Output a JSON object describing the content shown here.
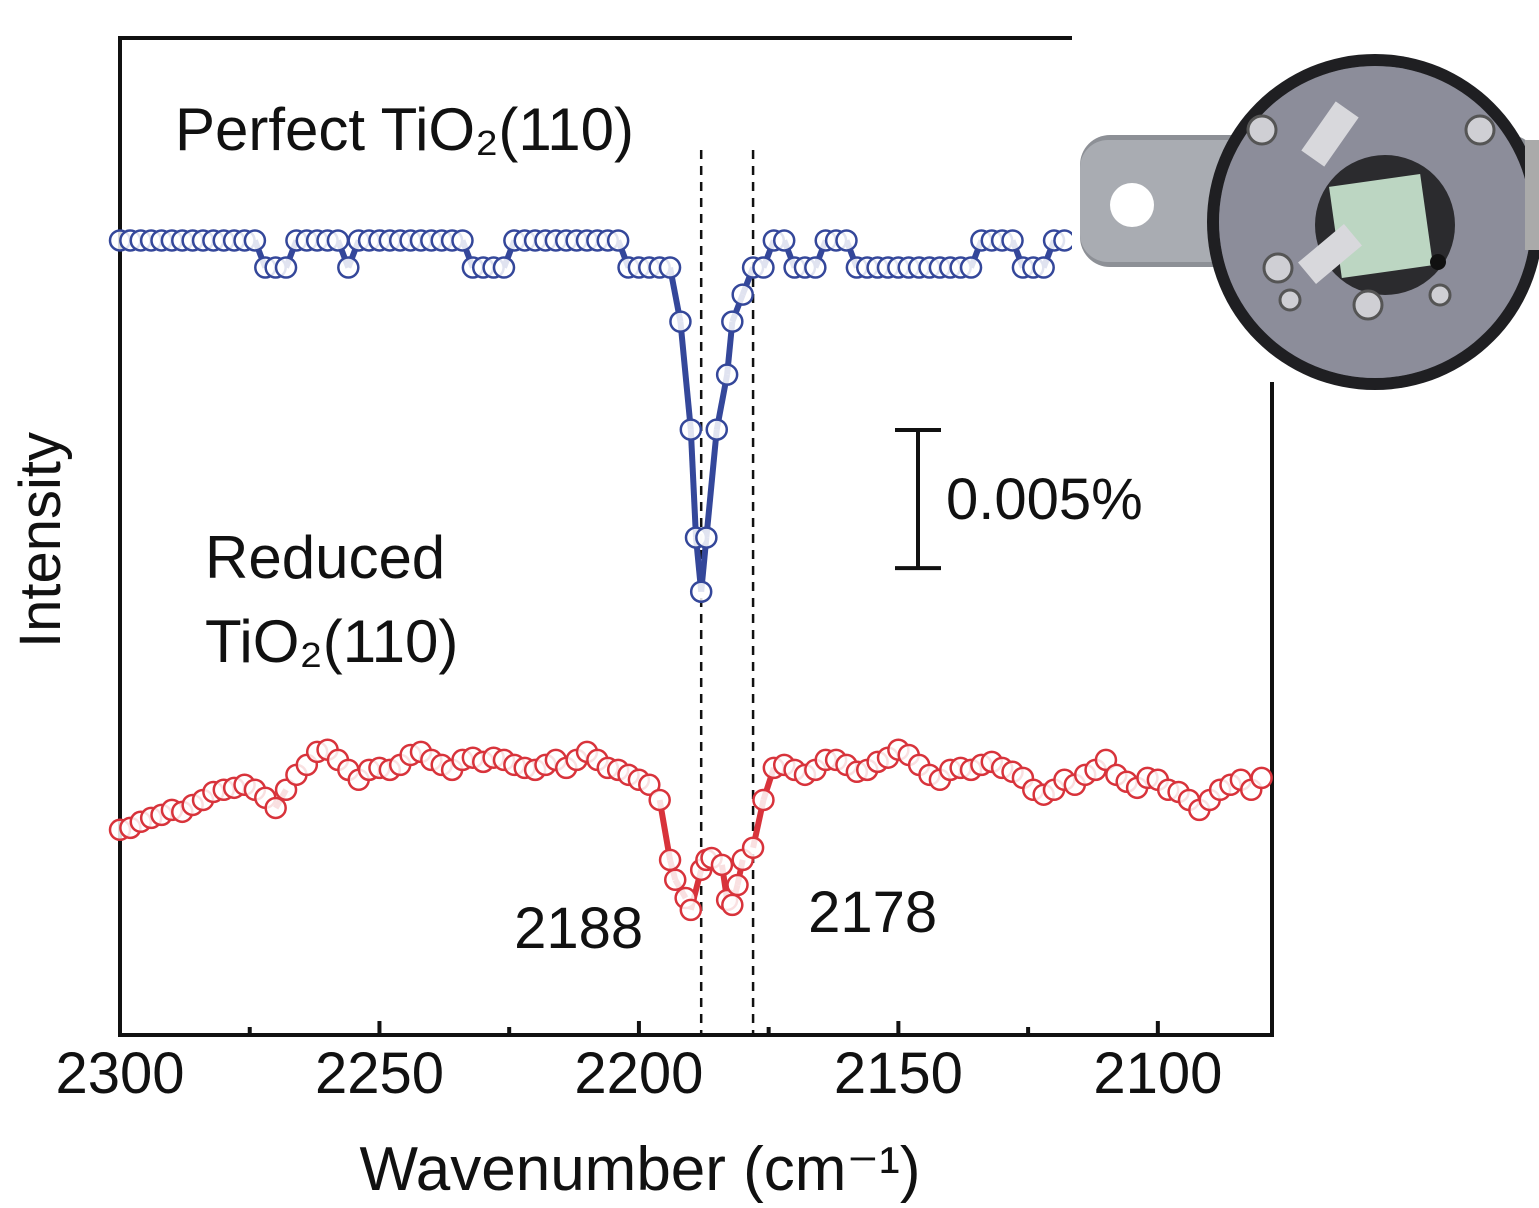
{
  "chart_data": {
    "type": "scatter",
    "y_label": "Intensity",
    "x_label": "Wavenumber (cm⁻¹)",
    "xlim": [
      2300,
      2078
    ],
    "ylim": [
      0,
      0.0361
    ],
    "xticks": [
      2300,
      2250,
      2200,
      2150,
      2100
    ],
    "xminor_ticks": [
      2275,
      2225,
      2175,
      2125
    ],
    "scale_bar": {
      "value": 0.005,
      "label": "0.005%"
    },
    "annotations": [
      {
        "text": "2188",
        "x": 2188
      },
      {
        "text": "2178",
        "x": 2178
      }
    ],
    "series": [
      {
        "name": "Perfect TiO₂(110)",
        "color": "#34479a",
        "x": [
          2300,
          2298,
          2296,
          2294,
          2292,
          2290,
          2288,
          2286,
          2284,
          2282,
          2280,
          2278,
          2276,
          2274,
          2272,
          2270,
          2268,
          2266,
          2264,
          2262,
          2260,
          2258,
          2256,
          2254,
          2252,
          2250,
          2248,
          2246,
          2244,
          2242,
          2240,
          2238,
          2236,
          2234,
          2232,
          2230,
          2228,
          2226,
          2224,
          2222,
          2220,
          2218,
          2216,
          2214,
          2212,
          2210,
          2208,
          2206,
          2204,
          2202,
          2200,
          2198,
          2196,
          2194,
          2192,
          2190,
          2189,
          2188,
          2187,
          2185,
          2183,
          2182,
          2180,
          2178,
          2176,
          2174,
          2172,
          2170,
          2168,
          2166,
          2164,
          2162,
          2160,
          2158,
          2156,
          2154,
          2152,
          2150,
          2148,
          2146,
          2144,
          2142,
          2140,
          2138,
          2136,
          2134,
          2132,
          2130,
          2128,
          2126,
          2124,
          2122,
          2120,
          2118
        ],
        "values": [
          0.02877,
          0.02877,
          0.02877,
          0.02877,
          0.02877,
          0.02877,
          0.02877,
          0.02877,
          0.02877,
          0.02877,
          0.02877,
          0.02877,
          0.02877,
          0.02877,
          0.02779,
          0.02779,
          0.02779,
          0.02877,
          0.02877,
          0.02877,
          0.02877,
          0.02877,
          0.02779,
          0.02877,
          0.02877,
          0.02877,
          0.02877,
          0.02877,
          0.02877,
          0.02877,
          0.02877,
          0.02877,
          0.02877,
          0.02877,
          0.02779,
          0.02779,
          0.02779,
          0.02779,
          0.02877,
          0.02877,
          0.02877,
          0.02877,
          0.02877,
          0.02877,
          0.02877,
          0.02877,
          0.02877,
          0.02877,
          0.02877,
          0.02779,
          0.02779,
          0.02779,
          0.02779,
          0.02779,
          0.02583,
          0.02192,
          0.01801,
          0.01605,
          0.01801,
          0.02192,
          0.02391,
          0.02583,
          0.02681,
          0.02779,
          0.02779,
          0.02877,
          0.02877,
          0.02779,
          0.02779,
          0.02779,
          0.02877,
          0.02877,
          0.02877,
          0.02779,
          0.02779,
          0.02779,
          0.02779,
          0.02779,
          0.02779,
          0.02779,
          0.02779,
          0.02779,
          0.02779,
          0.02779,
          0.02779,
          0.02877,
          0.02877,
          0.02877,
          0.02877,
          0.02779,
          0.02779,
          0.02779,
          0.02877,
          0.02877
        ]
      },
      {
        "name": "Reduced TiO₂(110)",
        "color": "#d8333b",
        "x": [
          2300,
          2298,
          2296,
          2294,
          2292,
          2290,
          2288,
          2286,
          2284,
          2282,
          2280,
          2278,
          2276,
          2274,
          2272,
          2270,
          2268,
          2266,
          2264,
          2262,
          2260,
          2258,
          2256,
          2254,
          2252,
          2250,
          2248,
          2246,
          2244,
          2242,
          2240,
          2238,
          2236,
          2234,
          2232,
          2230,
          2228,
          2226,
          2224,
          2222,
          2220,
          2218,
          2216,
          2214,
          2212,
          2210,
          2208,
          2206,
          2204,
          2202,
          2200,
          2198,
          2196,
          2194,
          2193,
          2191,
          2190,
          2188,
          2187,
          2186,
          2184,
          2183,
          2182,
          2181,
          2180,
          2178,
          2176,
          2174,
          2172,
          2170,
          2168,
          2166,
          2164,
          2162,
          2160,
          2158,
          2156,
          2154,
          2152,
          2150,
          2148,
          2146,
          2144,
          2142,
          2140,
          2138,
          2136,
          2134,
          2132,
          2130,
          2128,
          2126,
          2124,
          2122,
          2120,
          2118,
          2116,
          2114,
          2112,
          2110,
          2108,
          2106,
          2104,
          2102,
          2100,
          2098,
          2096,
          2094,
          2092,
          2090,
          2088,
          2086,
          2084,
          2082,
          2080
        ],
        "values": [
          0.00743,
          0.0075,
          0.00772,
          0.00786,
          0.00797,
          0.00815,
          0.00808,
          0.00833,
          0.00851,
          0.0088,
          0.00888,
          0.00895,
          0.00906,
          0.00888,
          0.00859,
          0.00822,
          0.00888,
          0.00942,
          0.00978,
          0.01025,
          0.01033,
          0.00996,
          0.0096,
          0.00924,
          0.0096,
          0.00967,
          0.0096,
          0.00978,
          0.01014,
          0.01025,
          0.00996,
          0.00978,
          0.0096,
          0.00996,
          0.01004,
          0.00989,
          0.01004,
          0.00996,
          0.00978,
          0.00967,
          0.0096,
          0.00978,
          0.00996,
          0.00967,
          0.00996,
          0.01025,
          0.00996,
          0.00967,
          0.0096,
          0.00942,
          0.00924,
          0.00906,
          0.00851,
          0.00634,
          0.00562,
          0.00496,
          0.00453,
          0.00598,
          0.00634,
          0.00641,
          0.00616,
          0.00489,
          0.00471,
          0.00543,
          0.00634,
          0.00678,
          0.00851,
          0.00967,
          0.00978,
          0.0096,
          0.00942,
          0.0096,
          0.00996,
          0.00996,
          0.00978,
          0.00953,
          0.0096,
          0.00989,
          0.01004,
          0.01033,
          0.01014,
          0.00978,
          0.00942,
          0.00924,
          0.0096,
          0.00967,
          0.0096,
          0.00978,
          0.00989,
          0.00967,
          0.00953,
          0.00931,
          0.00888,
          0.0087,
          0.00888,
          0.00924,
          0.00906,
          0.00942,
          0.0096,
          0.00996,
          0.00942,
          0.00917,
          0.00895,
          0.00931,
          0.00924,
          0.00888,
          0.0088,
          0.00851,
          0.00815,
          0.00851,
          0.00888,
          0.00906,
          0.00924,
          0.00888,
          0.00931
        ]
      }
    ]
  }
}
